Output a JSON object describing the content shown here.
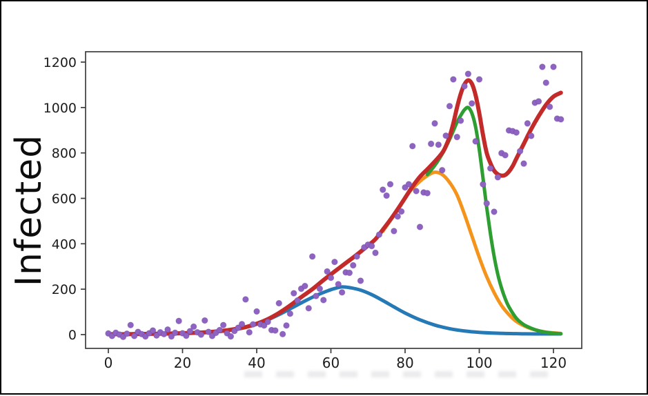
{
  "chart_data": {
    "type": "scatter",
    "title": "",
    "xlabel": "",
    "ylabel": "Infected",
    "grid": false,
    "legend": "none",
    "xlim": [
      -6,
      127.5
    ],
    "ylim": [
      -60,
      1245
    ],
    "x_ticks": [
      0,
      20,
      40,
      60,
      80,
      100,
      120
    ],
    "y_ticks": [
      0,
      200,
      400,
      600,
      800,
      1000,
      1200
    ],
    "scatter": {
      "name": "observed-infected-points",
      "color": "#8e63c1",
      "edge_color": "#6f46a5",
      "points": [
        [
          0,
          5
        ],
        [
          1,
          -6
        ],
        [
          2,
          8
        ],
        [
          3,
          0
        ],
        [
          4,
          -10
        ],
        [
          5,
          4
        ],
        [
          6,
          42
        ],
        [
          7,
          -6
        ],
        [
          8,
          12
        ],
        [
          9,
          2
        ],
        [
          10,
          -8
        ],
        [
          11,
          6
        ],
        [
          12,
          18
        ],
        [
          13,
          -4
        ],
        [
          14,
          10
        ],
        [
          15,
          2
        ],
        [
          16,
          22
        ],
        [
          17,
          -8
        ],
        [
          18,
          8
        ],
        [
          19,
          60
        ],
        [
          20,
          6
        ],
        [
          21,
          -5
        ],
        [
          22,
          15
        ],
        [
          23,
          35
        ],
        [
          24,
          10
        ],
        [
          25,
          0
        ],
        [
          26,
          62
        ],
        [
          27,
          12
        ],
        [
          28,
          -6
        ],
        [
          29,
          8
        ],
        [
          30,
          20
        ],
        [
          31,
          42
        ],
        [
          32,
          6
        ],
        [
          33,
          -8
        ],
        [
          34,
          16
        ],
        [
          35,
          30
        ],
        [
          36,
          46
        ],
        [
          37,
          155
        ],
        [
          38,
          10
        ],
        [
          39,
          45
        ],
        [
          40,
          102
        ],
        [
          41,
          45
        ],
        [
          42,
          40
        ],
        [
          43,
          56
        ],
        [
          44,
          20
        ],
        [
          45,
          18
        ],
        [
          46,
          138
        ],
        [
          47,
          2
        ],
        [
          48,
          40
        ],
        [
          49,
          92
        ],
        [
          50,
          182
        ],
        [
          51,
          150
        ],
        [
          52,
          202
        ],
        [
          53,
          214
        ],
        [
          54,
          116
        ],
        [
          55,
          344
        ],
        [
          56,
          170
        ],
        [
          57,
          202
        ],
        [
          58,
          152
        ],
        [
          59,
          278
        ],
        [
          60,
          250
        ],
        [
          61,
          320
        ],
        [
          62,
          222
        ],
        [
          63,
          186
        ],
        [
          64,
          274
        ],
        [
          65,
          272
        ],
        [
          66,
          305
        ],
        [
          67,
          344
        ],
        [
          68,
          237
        ],
        [
          69,
          384
        ],
        [
          70,
          396
        ],
        [
          71,
          390
        ],
        [
          72,
          360
        ],
        [
          73,
          440
        ],
        [
          74,
          638
        ],
        [
          75,
          612
        ],
        [
          76,
          662
        ],
        [
          77,
          456
        ],
        [
          78,
          520
        ],
        [
          79,
          542
        ],
        [
          80,
          648
        ],
        [
          81,
          662
        ],
        [
          82,
          830
        ],
        [
          83,
          632
        ],
        [
          84,
          474
        ],
        [
          85,
          626
        ],
        [
          86,
          623
        ],
        [
          87,
          840
        ],
        [
          88,
          930
        ],
        [
          89,
          836
        ],
        [
          90,
          724
        ],
        [
          91,
          876
        ],
        [
          92,
          1006
        ],
        [
          93,
          1124
        ],
        [
          94,
          870
        ],
        [
          95,
          942
        ],
        [
          96,
          1094
        ],
        [
          97,
          1148
        ],
        [
          98,
          1018
        ],
        [
          99,
          851
        ],
        [
          100,
          1124
        ],
        [
          101,
          662
        ],
        [
          102,
          578
        ],
        [
          103,
          732
        ],
        [
          104,
          541
        ],
        [
          105,
          693
        ],
        [
          106,
          799
        ],
        [
          107,
          790
        ],
        [
          108,
          899
        ],
        [
          109,
          896
        ],
        [
          110,
          890
        ],
        [
          111,
          808
        ],
        [
          112,
          753
        ],
        [
          113,
          930
        ],
        [
          114,
          875
        ],
        [
          115,
          1021
        ],
        [
          116,
          1027
        ],
        [
          117,
          1179
        ],
        [
          118,
          1109
        ],
        [
          119,
          1003
        ],
        [
          120,
          1179
        ],
        [
          121,
          951
        ],
        [
          122,
          948
        ]
      ]
    },
    "series": [
      {
        "name": "wave-1-component",
        "color": "#2579b5",
        "width": 5,
        "points": [
          [
            0,
            3
          ],
          [
            5,
            3
          ],
          [
            10,
            4
          ],
          [
            15,
            5
          ],
          [
            20,
            6
          ],
          [
            25,
            8
          ],
          [
            30,
            14
          ],
          [
            34,
            22
          ],
          [
            38,
            36
          ],
          [
            42,
            58
          ],
          [
            46,
            88
          ],
          [
            50,
            122
          ],
          [
            53,
            148
          ],
          [
            56,
            172
          ],
          [
            59,
            192
          ],
          [
            61,
            203
          ],
          [
            63,
            210
          ],
          [
            65,
            207
          ],
          [
            68,
            196
          ],
          [
            71,
            176
          ],
          [
            74,
            150
          ],
          [
            77,
            122
          ],
          [
            80,
            95
          ],
          [
            84,
            65
          ],
          [
            88,
            42
          ],
          [
            92,
            26
          ],
          [
            96,
            16
          ],
          [
            100,
            10
          ],
          [
            105,
            6
          ],
          [
            110,
            4
          ],
          [
            115,
            3
          ],
          [
            122,
            3
          ]
        ]
      },
      {
        "name": "wave-2-component",
        "color": "#f5941a",
        "width": 5,
        "points": [
          [
            74,
            455
          ],
          [
            78,
            550
          ],
          [
            81,
            625
          ],
          [
            84,
            675
          ],
          [
            86,
            700
          ],
          [
            88,
            715
          ],
          [
            90,
            705
          ],
          [
            92,
            670
          ],
          [
            94,
            615
          ],
          [
            96,
            530
          ],
          [
            98,
            435
          ],
          [
            100,
            340
          ],
          [
            102,
            255
          ],
          [
            104,
            185
          ],
          [
            106,
            128
          ],
          [
            108,
            88
          ],
          [
            110,
            58
          ],
          [
            113,
            32
          ],
          [
            116,
            17
          ],
          [
            119,
            9
          ],
          [
            122,
            5
          ]
        ]
      },
      {
        "name": "wave-3-component",
        "color": "#2f9e32",
        "width": 5,
        "points": [
          [
            86,
            705
          ],
          [
            88,
            745
          ],
          [
            90,
            795
          ],
          [
            92,
            860
          ],
          [
            94,
            935
          ],
          [
            95,
            965
          ],
          [
            96,
            990
          ],
          [
            97,
            1000
          ],
          [
            98,
            975
          ],
          [
            99,
            915
          ],
          [
            100,
            815
          ],
          [
            101,
            690
          ],
          [
            102,
            560
          ],
          [
            103,
            445
          ],
          [
            104,
            345
          ],
          [
            105,
            265
          ],
          [
            106,
            205
          ],
          [
            107,
            158
          ],
          [
            108,
            122
          ],
          [
            110,
            72
          ],
          [
            112,
            44
          ],
          [
            114,
            28
          ],
          [
            116,
            17
          ],
          [
            118,
            10
          ],
          [
            120,
            6
          ],
          [
            122,
            4
          ]
        ]
      },
      {
        "name": "total-fit",
        "color": "#c32a2a",
        "width": 6,
        "points": [
          [
            0,
            2
          ],
          [
            5,
            2
          ],
          [
            10,
            3
          ],
          [
            15,
            4
          ],
          [
            20,
            6
          ],
          [
            25,
            9
          ],
          [
            28,
            12
          ],
          [
            31,
            17
          ],
          [
            34,
            24
          ],
          [
            37,
            33
          ],
          [
            40,
            48
          ],
          [
            43,
            68
          ],
          [
            46,
            95
          ],
          [
            49,
            128
          ],
          [
            52,
            165
          ],
          [
            55,
            200
          ],
          [
            58,
            240
          ],
          [
            61,
            278
          ],
          [
            64,
            315
          ],
          [
            67,
            352
          ],
          [
            70,
            392
          ],
          [
            72,
            420
          ],
          [
            74,
            462
          ],
          [
            76,
            505
          ],
          [
            78,
            552
          ],
          [
            80,
            602
          ],
          [
            82,
            652
          ],
          [
            84,
            695
          ],
          [
            86,
            728
          ],
          [
            88,
            762
          ],
          [
            90,
            800
          ],
          [
            91,
            830
          ],
          [
            92,
            872
          ],
          [
            93,
            930
          ],
          [
            94,
            1000
          ],
          [
            95,
            1060
          ],
          [
            96,
            1102
          ],
          [
            97,
            1120
          ],
          [
            98,
            1105
          ],
          [
            99,
            1055
          ],
          [
            100,
            975
          ],
          [
            101,
            880
          ],
          [
            102,
            800
          ],
          [
            103,
            755
          ],
          [
            104,
            722
          ],
          [
            105,
            706
          ],
          [
            106,
            700
          ],
          [
            107,
            703
          ],
          [
            108,
            718
          ],
          [
            109,
            742
          ],
          [
            110,
            775
          ],
          [
            112,
            840
          ],
          [
            114,
            905
          ],
          [
            116,
            962
          ],
          [
            118,
            1012
          ],
          [
            120,
            1048
          ],
          [
            122,
            1065
          ]
        ]
      }
    ],
    "axis": {
      "spine_color": "#3c3c3c",
      "tick_label_color": "#1c1c1c"
    }
  },
  "frame": {
    "border_color": "#000000",
    "background": "#ffffff"
  }
}
